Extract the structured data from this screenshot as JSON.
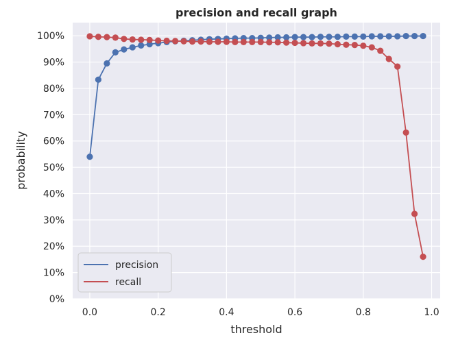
{
  "chart_data": {
    "type": "line",
    "title": "precision and recall graph",
    "xlabel": "threshold",
    "ylabel": "probability",
    "xlim": [
      -0.05,
      1.025
    ],
    "ylim": [
      0,
      1.05
    ],
    "x_ticks": [
      0.0,
      0.2,
      0.4,
      0.6,
      0.8,
      1.0
    ],
    "x_tick_labels": [
      "0.0",
      "0.2",
      "0.4",
      "0.6",
      "0.8",
      "1.0"
    ],
    "y_ticks": [
      0,
      0.1,
      0.2,
      0.3,
      0.4,
      0.5,
      0.6,
      0.7,
      0.8,
      0.9,
      1.0
    ],
    "y_tick_labels": [
      "0%",
      "10%",
      "20%",
      "30%",
      "40%",
      "50%",
      "60%",
      "70%",
      "80%",
      "90%",
      "100%"
    ],
    "grid": true,
    "legend_position": "bottom-left",
    "x": [
      0.0,
      0.025,
      0.05,
      0.075,
      0.1,
      0.125,
      0.15,
      0.175,
      0.2,
      0.225,
      0.25,
      0.275,
      0.3,
      0.325,
      0.35,
      0.375,
      0.4,
      0.425,
      0.45,
      0.475,
      0.5,
      0.525,
      0.55,
      0.575,
      0.6,
      0.625,
      0.65,
      0.675,
      0.7,
      0.725,
      0.75,
      0.775,
      0.8,
      0.825,
      0.85,
      0.875,
      0.9,
      0.925,
      0.95,
      0.975
    ],
    "series": [
      {
        "name": "precision",
        "color": "#4c72b0",
        "values": [
          0.54,
          0.833,
          0.895,
          0.937,
          0.948,
          0.956,
          0.963,
          0.968,
          0.972,
          0.976,
          0.979,
          0.981,
          0.983,
          0.985,
          0.987,
          0.988,
          0.989,
          0.99,
          0.991,
          0.991,
          0.992,
          0.993,
          0.994,
          0.994,
          0.995,
          0.995,
          0.995,
          0.996,
          0.996,
          0.996,
          0.997,
          0.997,
          0.997,
          0.998,
          0.998,
          0.998,
          0.998,
          0.999,
          0.999,
          0.999
        ]
      },
      {
        "name": "recall",
        "color": "#c44e52",
        "values": [
          0.998,
          0.996,
          0.995,
          0.993,
          0.988,
          0.986,
          0.985,
          0.984,
          0.982,
          0.981,
          0.98,
          0.979,
          0.978,
          0.978,
          0.977,
          0.977,
          0.977,
          0.976,
          0.976,
          0.976,
          0.976,
          0.975,
          0.975,
          0.974,
          0.973,
          0.972,
          0.971,
          0.971,
          0.97,
          0.968,
          0.966,
          0.965,
          0.962,
          0.956,
          0.943,
          0.912,
          0.883,
          0.632,
          0.323,
          0.16
        ]
      }
    ]
  },
  "colors": {
    "plot_background": "#eaeaf2",
    "grid": "#ffffff",
    "text": "#262626"
  }
}
